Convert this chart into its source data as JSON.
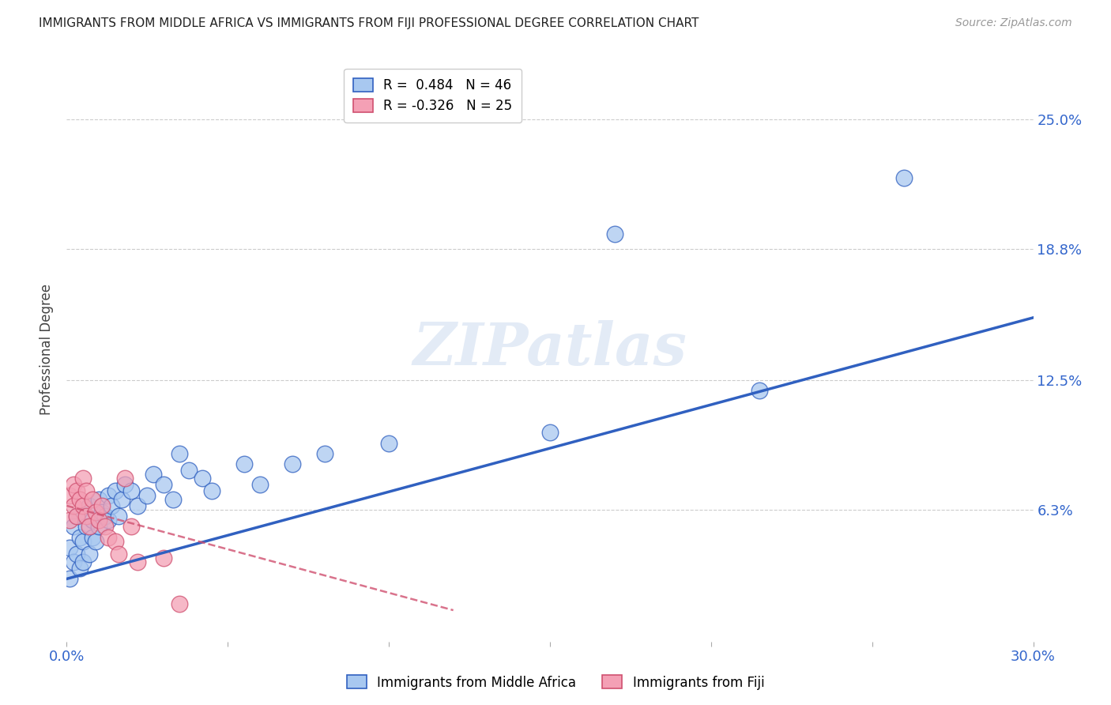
{
  "title": "IMMIGRANTS FROM MIDDLE AFRICA VS IMMIGRANTS FROM FIJI PROFESSIONAL DEGREE CORRELATION CHART",
  "source": "Source: ZipAtlas.com",
  "ylabel": "Professional Degree",
  "xlim": [
    0.0,
    0.3
  ],
  "ylim": [
    0.0,
    0.28
  ],
  "xtick_pos": [
    0.0,
    0.05,
    0.1,
    0.15,
    0.2,
    0.25,
    0.3
  ],
  "xtick_labels": [
    "0.0%",
    "",
    "",
    "",
    "",
    "",
    "30.0%"
  ],
  "ytick_labels_right": [
    "25.0%",
    "18.8%",
    "12.5%",
    "6.3%"
  ],
  "ytick_positions_right": [
    0.25,
    0.188,
    0.125,
    0.063
  ],
  "legend_blue_r": "R =  0.484",
  "legend_blue_n": "N = 46",
  "legend_pink_r": "R = -0.326",
  "legend_pink_n": "N = 25",
  "color_blue": "#A8C8F0",
  "color_pink": "#F4A0B5",
  "line_blue": "#3060C0",
  "line_pink": "#D05070",
  "watermark": "ZIPatlas",
  "blue_x": [
    0.001,
    0.001,
    0.002,
    0.002,
    0.003,
    0.003,
    0.004,
    0.004,
    0.005,
    0.005,
    0.006,
    0.007,
    0.007,
    0.008,
    0.008,
    0.009,
    0.01,
    0.01,
    0.011,
    0.012,
    0.013,
    0.013,
    0.014,
    0.015,
    0.016,
    0.017,
    0.018,
    0.02,
    0.022,
    0.025,
    0.027,
    0.03,
    0.033,
    0.035,
    0.038,
    0.042,
    0.045,
    0.055,
    0.06,
    0.07,
    0.08,
    0.1,
    0.15,
    0.17,
    0.215,
    0.26
  ],
  "blue_y": [
    0.03,
    0.045,
    0.038,
    0.055,
    0.042,
    0.06,
    0.035,
    0.05,
    0.048,
    0.038,
    0.055,
    0.042,
    0.065,
    0.058,
    0.05,
    0.048,
    0.055,
    0.068,
    0.062,
    0.06,
    0.058,
    0.07,
    0.065,
    0.072,
    0.06,
    0.068,
    0.075,
    0.072,
    0.065,
    0.07,
    0.08,
    0.075,
    0.068,
    0.09,
    0.082,
    0.078,
    0.072,
    0.085,
    0.075,
    0.085,
    0.09,
    0.095,
    0.1,
    0.195,
    0.12,
    0.222
  ],
  "pink_x": [
    0.001,
    0.001,
    0.002,
    0.002,
    0.003,
    0.003,
    0.004,
    0.005,
    0.005,
    0.006,
    0.006,
    0.007,
    0.008,
    0.009,
    0.01,
    0.011,
    0.012,
    0.013,
    0.015,
    0.016,
    0.018,
    0.02,
    0.022,
    0.03,
    0.035
  ],
  "pink_y": [
    0.058,
    0.07,
    0.065,
    0.075,
    0.06,
    0.072,
    0.068,
    0.065,
    0.078,
    0.072,
    0.06,
    0.055,
    0.068,
    0.062,
    0.058,
    0.065,
    0.055,
    0.05,
    0.048,
    0.042,
    0.078,
    0.055,
    0.038,
    0.04,
    0.018
  ],
  "grid_color": "#CCCCCC",
  "blue_line_x": [
    0.0,
    0.3
  ],
  "blue_line_y": [
    0.03,
    0.155
  ],
  "pink_line_x": [
    0.0,
    0.12
  ],
  "pink_line_y": [
    0.065,
    0.015
  ]
}
